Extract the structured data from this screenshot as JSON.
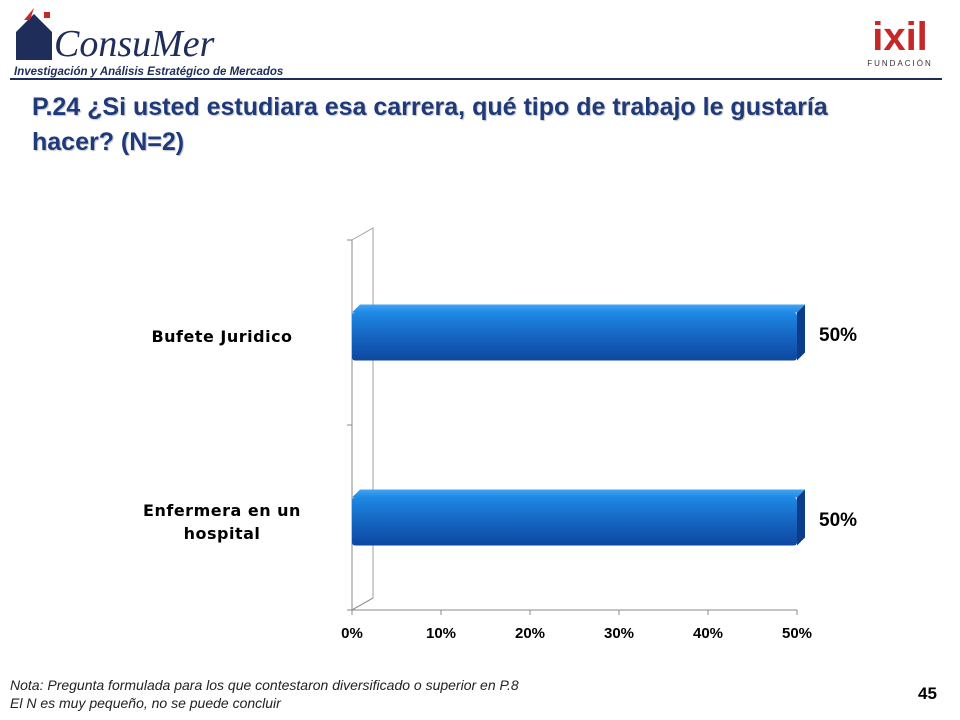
{
  "header": {
    "brand_name": "ConsuMer",
    "brand_tagline": "Investigación y Análisis Estratégico de Mercados",
    "partner_name": "ixil",
    "partner_tagline": "FUNDACIÓN"
  },
  "title": "P.24 ¿Si usted estudiara esa carrera, qué tipo de trabajo le gustaría hacer? (N=2)",
  "chart_data": {
    "type": "bar",
    "orientation": "horizontal",
    "categories": [
      "Bufete Juridico",
      "Enfermera en un hospital"
    ],
    "values": [
      50,
      50
    ],
    "value_labels": [
      "50%",
      "50%"
    ],
    "x_ticks": [
      "0%",
      "10%",
      "20%",
      "30%",
      "40%",
      "50%"
    ],
    "xlim": [
      0,
      50
    ],
    "grid": false,
    "legend": false,
    "bar_color": "#1565c0",
    "title": "",
    "xlabel": "",
    "ylabel": ""
  },
  "footer": {
    "note_line1": "Nota: Pregunta formulada para los que contestaron diversificado o superior en P.8",
    "note_line2": "El N es muy pequeño, no se puede concluir",
    "page_number": "45"
  }
}
